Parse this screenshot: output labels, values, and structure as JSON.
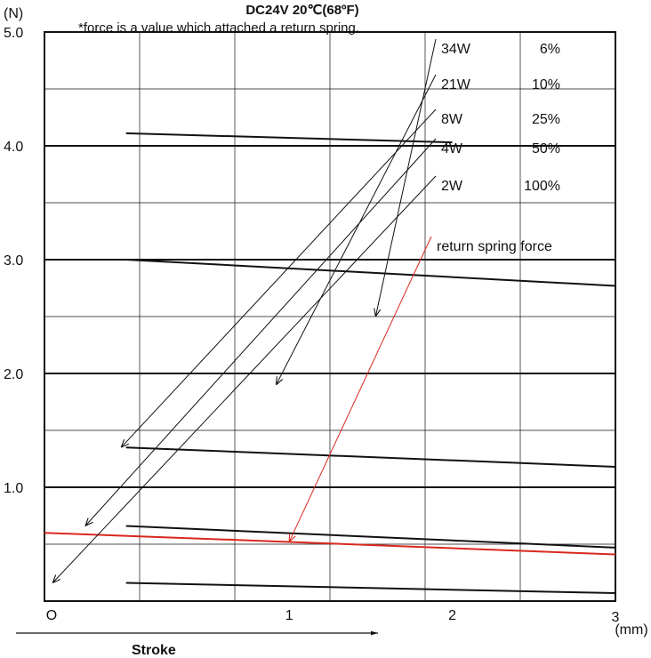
{
  "chart_data": {
    "type": "line",
    "title": "DC24V  20℃(68ºF)",
    "note": "*force is a value which attached a return spring.",
    "xlabel": "Stroke",
    "xunit": "(mm)",
    "yunit": "(N)",
    "xlim": [
      -0.5,
      3
    ],
    "ylim": [
      0,
      5
    ],
    "x_ticks": [
      {
        "v": -0.5,
        "label": "O"
      },
      {
        "v": 1,
        "label": "1"
      },
      {
        "v": 2,
        "label": "2"
      },
      {
        "v": 3,
        "label": "3"
      }
    ],
    "y_ticks": [
      {
        "v": 1,
        "label": "1.0"
      },
      {
        "v": 2,
        "label": "2.0"
      },
      {
        "v": 3,
        "label": "3.0"
      },
      {
        "v": 4,
        "label": "4.0"
      },
      {
        "v": 5,
        "label": "5.0"
      }
    ],
    "grid": true,
    "series": [
      {
        "name": "34W",
        "duty": "6%",
        "x": [
          0,
          2
        ],
        "y": [
          4.11,
          4.03
        ],
        "color": "#111111"
      },
      {
        "name": "21W",
        "duty": "10%",
        "x": [
          0,
          3
        ],
        "y": [
          3.0,
          2.77
        ],
        "color": "#111111"
      },
      {
        "name": "8W",
        "duty": "25%",
        "x": [
          0,
          3
        ],
        "y": [
          1.35,
          1.18
        ],
        "color": "#111111"
      },
      {
        "name": "4W",
        "duty": "50%",
        "x": [
          0,
          3
        ],
        "y": [
          0.66,
          0.47
        ],
        "color": "#111111"
      },
      {
        "name": "2W",
        "duty": "100%",
        "x": [
          0,
          3
        ],
        "y": [
          0.16,
          0.07
        ],
        "color": "#111111"
      },
      {
        "name": "return spring force",
        "x": [
          -0.5,
          1,
          3
        ],
        "y": [
          0.6,
          0.52,
          0.41
        ],
        "color": "#d9281e"
      }
    ],
    "legend": [
      {
        "label": "34W",
        "duty": "6%",
        "tx": 1.53,
        "ty": 2.5,
        "series": 0
      },
      {
        "label": "21W",
        "duty": "10%",
        "tx": 0.92,
        "ty": 1.9,
        "series": 1
      },
      {
        "label": "8W",
        "duty": "25%",
        "tx": -0.03,
        "ty": 1.35,
        "series": 2
      },
      {
        "label": "4W",
        "duty": "50%",
        "tx": -0.25,
        "ty": 0.66,
        "series": 3
      },
      {
        "label": "2W",
        "duty": "100%",
        "tx": -0.45,
        "ty": 0.16,
        "series": 4
      },
      {
        "label": "return spring force",
        "tx": 1,
        "ty": 0.52,
        "series": 5
      }
    ]
  }
}
